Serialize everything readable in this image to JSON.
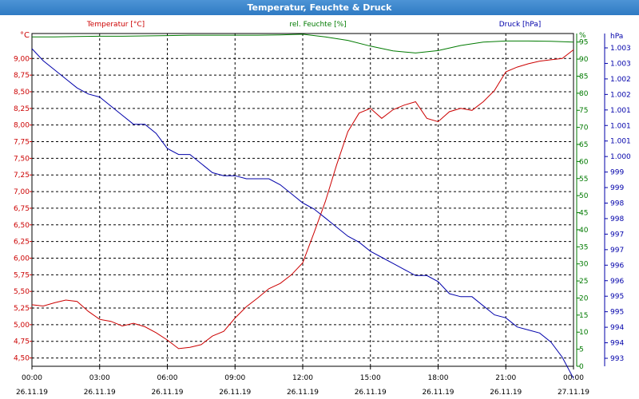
{
  "window": {
    "title": "Temperatur, Feuchte & Druck"
  },
  "chart_data": {
    "type": "line",
    "title": "Temperatur, Feuchte & Druck",
    "colors": {
      "temperature": "#cc0000",
      "humidity": "#007a00",
      "pressure": "#0000aa",
      "grid": "#000000"
    },
    "grid": true,
    "x_ticks": [
      {
        "time": "00:00",
        "date": "26.11.19"
      },
      {
        "time": "03:00",
        "date": "26.11.19"
      },
      {
        "time": "06:00",
        "date": "26.11.19"
      },
      {
        "time": "09:00",
        "date": "26.11.19"
      },
      {
        "time": "12:00",
        "date": "26.11.19"
      },
      {
        "time": "15:00",
        "date": "26.11.19"
      },
      {
        "time": "18:00",
        "date": "26.11.19"
      },
      {
        "time": "21:00",
        "date": "26.11.19"
      },
      {
        "time": "00:00",
        "date": "27.11.19"
      }
    ],
    "x_hours_range": [
      0,
      24
    ],
    "axes": {
      "left": {
        "unit": "°C",
        "ylim": [
          4.375,
          9.375
        ],
        "ticks": [
          "4,50",
          "4,75",
          "5,00",
          "5,25",
          "5,50",
          "5,75",
          "6,00",
          "6,25",
          "6,50",
          "6,75",
          "7,00",
          "7,25",
          "7,50",
          "7,75",
          "8,00",
          "8,25",
          "8,50",
          "8,75",
          "9,00"
        ]
      },
      "right_inner": {
        "unit": "%",
        "ylim": [
          0,
          97.5
        ],
        "ticks": [
          "0",
          "5",
          "10",
          "15",
          "20",
          "25",
          "30",
          "35",
          "40",
          "45",
          "50",
          "55",
          "60",
          "65",
          "70",
          "75",
          "80",
          "85",
          "90",
          "95"
        ]
      },
      "right_outer": {
        "unit": "hPa",
        "ticks": [
          "993",
          "994",
          "994",
          "995",
          "995",
          "996",
          "996",
          "997",
          "997",
          "998",
          "998",
          "999",
          "999",
          "1.000",
          "1.001",
          "1.001",
          "1.001",
          "1.002",
          "1.002",
          "1.003",
          "1.003"
        ]
      }
    },
    "series": [
      {
        "name": "Temperatur [°C]",
        "axis": "left",
        "x": [
          0,
          0.5,
          1,
          1.5,
          2,
          2.5,
          3,
          3.5,
          4,
          4.5,
          5,
          5.5,
          6,
          6.5,
          7,
          7.5,
          8,
          8.5,
          9,
          9.5,
          10,
          10.5,
          11,
          11.5,
          12,
          12.5,
          13,
          13.5,
          14,
          14.5,
          15,
          15.5,
          16,
          16.5,
          17,
          17.5,
          18,
          18.5,
          19,
          19.5,
          20,
          20.5,
          21,
          21.5,
          22,
          22.5,
          23,
          23.5,
          24
        ],
        "y": [
          5.3,
          5.28,
          5.33,
          5.37,
          5.35,
          5.2,
          5.08,
          5.05,
          4.98,
          5.02,
          4.97,
          4.88,
          4.77,
          4.64,
          4.66,
          4.7,
          4.83,
          4.9,
          5.1,
          5.27,
          5.4,
          5.54,
          5.62,
          5.75,
          5.93,
          6.38,
          6.85,
          7.4,
          7.9,
          8.18,
          8.25,
          8.1,
          8.23,
          8.3,
          8.35,
          8.1,
          8.05,
          8.2,
          8.25,
          8.22,
          8.35,
          8.52,
          8.8,
          8.87,
          8.92,
          8.96,
          8.98,
          9.0,
          9.13
        ]
      },
      {
        "name": "rel. Feuchte [%]",
        "axis": "right_inner",
        "x": [
          0,
          1,
          2,
          3,
          4,
          5,
          6,
          7,
          8,
          9,
          10,
          11,
          12,
          13,
          14,
          15,
          16,
          17,
          18,
          19,
          20,
          21,
          22,
          23,
          24
        ],
        "y": [
          96.5,
          96.5,
          96.6,
          96.7,
          96.7,
          96.8,
          96.9,
          97.0,
          97.0,
          97.0,
          97.0,
          97.1,
          97.3,
          96.5,
          95.5,
          93.8,
          92.4,
          91.8,
          92.5,
          94.0,
          95.0,
          95.3,
          95.3,
          95.2,
          95.0
        ]
      },
      {
        "name": "Druck [hPa]",
        "axis": "right_outer",
        "ylim": [
          992.6,
          1003.6
        ],
        "x": [
          0,
          0.5,
          1,
          1.5,
          2,
          2.5,
          3,
          3.5,
          4,
          4.5,
          5,
          5.5,
          6,
          6.5,
          7,
          7.5,
          8,
          8.5,
          9,
          9.5,
          10,
          10.5,
          11,
          11.5,
          12,
          12.5,
          13,
          13.5,
          14,
          14.5,
          15,
          15.5,
          16,
          16.5,
          17,
          17.5,
          18,
          18.5,
          19,
          19.5,
          20,
          20.5,
          21,
          21.5,
          22,
          22.5,
          23,
          23.5,
          24
        ],
        "y": [
          1003.1,
          1002.7,
          1002.4,
          1002.1,
          1001.8,
          1001.6,
          1001.5,
          1001.2,
          1000.9,
          1000.6,
          1000.6,
          1000.3,
          999.8,
          999.6,
          999.6,
          999.3,
          999.0,
          998.9,
          998.9,
          998.8,
          998.8,
          998.8,
          998.6,
          998.3,
          998.0,
          997.8,
          997.5,
          997.2,
          996.9,
          996.7,
          996.4,
          996.2,
          996.0,
          995.8,
          995.6,
          995.6,
          995.4,
          995.0,
          994.9,
          994.9,
          994.6,
          994.3,
          994.2,
          993.9,
          993.8,
          993.7,
          993.4,
          992.9,
          992.2
        ]
      }
    ]
  }
}
